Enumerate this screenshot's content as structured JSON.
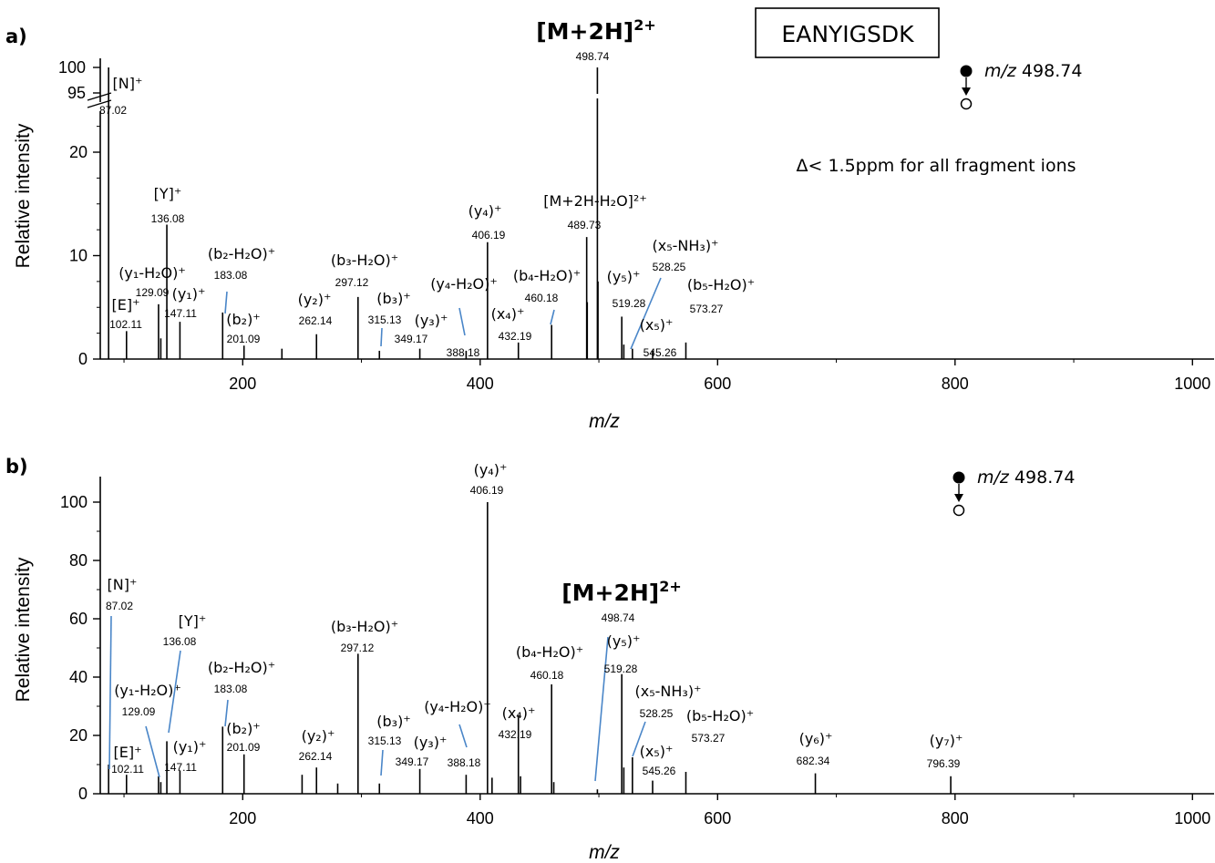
{
  "chart_data": [
    {
      "panel_label": "a)",
      "type": "bar",
      "xlabel": "m/z",
      "ylabel": "Relative intensity",
      "xlim": [
        80,
        1020
      ],
      "x_ticks": [
        200,
        400,
        600,
        800,
        1000
      ],
      "y_ticks_lower": [
        0,
        10,
        20
      ],
      "y_ticks_upper": [
        95,
        100
      ],
      "axis_break": {
        "below": 25,
        "above": 95
      },
      "sequence_box": "EANYIGSDK",
      "precursor": {
        "title": "[M+2H]",
        "charge": "2+",
        "mz": "498.74"
      },
      "fragmentation_scheme": "m/z 498.74",
      "note": "Δ< 1.5ppm for all fragment ions",
      "peaks": [
        {
          "x": 87.02,
          "y": 100
        },
        {
          "x": 102.11,
          "y": 2.7
        },
        {
          "x": 129.09,
          "y": 5.3
        },
        {
          "x": 131.0,
          "y": 2.0
        },
        {
          "x": 136.08,
          "y": 13.0
        },
        {
          "x": 147.11,
          "y": 3.6
        },
        {
          "x": 183.08,
          "y": 4.5
        },
        {
          "x": 201.09,
          "y": 1.3
        },
        {
          "x": 233.0,
          "y": 1.0
        },
        {
          "x": 262.14,
          "y": 2.4
        },
        {
          "x": 297.12,
          "y": 6.0
        },
        {
          "x": 315.13,
          "y": 0.8
        },
        {
          "x": 349.17,
          "y": 1.0
        },
        {
          "x": 388.18,
          "y": 0.8
        },
        {
          "x": 406.19,
          "y": 11.3
        },
        {
          "x": 432.19,
          "y": 1.6
        },
        {
          "x": 460.18,
          "y": 3.3
        },
        {
          "x": 489.73,
          "y": 11.8
        },
        {
          "x": 490.2,
          "y": 5.5
        },
        {
          "x": 498.74,
          "y": 100
        },
        {
          "x": 499.24,
          "y": 7.5
        },
        {
          "x": 519.28,
          "y": 4.1
        },
        {
          "x": 521.0,
          "y": 1.4
        },
        {
          "x": 528.25,
          "y": 1.0
        },
        {
          "x": 545.26,
          "y": 0.8
        },
        {
          "x": 573.27,
          "y": 1.6
        }
      ],
      "annotations": [
        {
          "ion": "[N]⁺",
          "mz": "87.02"
        },
        {
          "ion": "[E]⁺",
          "mz": "102.11"
        },
        {
          "ion": "(y₁-H₂O)⁺",
          "mz": "129.09"
        },
        {
          "ion": "[Y]⁺",
          "mz": "136.08"
        },
        {
          "ion": "(y₁)⁺",
          "mz": "147.11"
        },
        {
          "ion": "(b₂-H₂O)⁺",
          "mz": "183.08"
        },
        {
          "ion": "(b₂)⁺",
          "mz": "201.09"
        },
        {
          "ion": "(y₂)⁺",
          "mz": "262.14"
        },
        {
          "ion": "(b₃-H₂O)⁺",
          "mz": "297.12"
        },
        {
          "ion": "(b₃)⁺",
          "mz": "315.13"
        },
        {
          "ion": "(y₃)⁺",
          "mz": "349.17"
        },
        {
          "ion": "(y₄-H₂O)⁺",
          "mz": "388.18"
        },
        {
          "ion": "(y₄)⁺",
          "mz": "406.19"
        },
        {
          "ion": "(x₄)⁺",
          "mz": "432.19"
        },
        {
          "ion": "(b₄-H₂O)⁺",
          "mz": "460.18"
        },
        {
          "ion": "[M+2H-H₂O]²⁺",
          "mz": "489.73"
        },
        {
          "ion": "(y₅)⁺",
          "mz": "519.28"
        },
        {
          "ion": "(x₅-NH₃)⁺",
          "mz": "528.25"
        },
        {
          "ion": "(x₅)⁺",
          "mz": "545.26"
        },
        {
          "ion": "(b₅-H₂O)⁺",
          "mz": "573.27"
        }
      ]
    },
    {
      "panel_label": "b)",
      "type": "bar",
      "xlabel": "m/z",
      "ylabel": "Relative intensity",
      "xlim": [
        80,
        1020
      ],
      "ylim": [
        0,
        108
      ],
      "x_ticks": [
        200,
        400,
        600,
        800,
        1000
      ],
      "y_ticks": [
        0,
        20,
        40,
        60,
        80,
        100
      ],
      "precursor": {
        "title": "[M+2H]",
        "charge": "2+",
        "mz": "498.74"
      },
      "fragmentation_scheme": "m/z 498.74",
      "peaks": [
        {
          "x": 87.02,
          "y": 10
        },
        {
          "x": 102.11,
          "y": 6.5
        },
        {
          "x": 129.09,
          "y": 6
        },
        {
          "x": 131.0,
          "y": 4
        },
        {
          "x": 136.08,
          "y": 18
        },
        {
          "x": 147.11,
          "y": 8
        },
        {
          "x": 183.08,
          "y": 23
        },
        {
          "x": 201.09,
          "y": 13.5
        },
        {
          "x": 250.0,
          "y": 6.5
        },
        {
          "x": 262.14,
          "y": 9
        },
        {
          "x": 280.0,
          "y": 3.5
        },
        {
          "x": 297.12,
          "y": 48
        },
        {
          "x": 315.13,
          "y": 3.5
        },
        {
          "x": 349.17,
          "y": 8.5
        },
        {
          "x": 388.18,
          "y": 6.5
        },
        {
          "x": 406.19,
          "y": 100
        },
        {
          "x": 410.0,
          "y": 5.5
        },
        {
          "x": 432.19,
          "y": 27
        },
        {
          "x": 434.0,
          "y": 6
        },
        {
          "x": 460.18,
          "y": 37.5
        },
        {
          "x": 462.0,
          "y": 4
        },
        {
          "x": 498.74,
          "y": 1.5
        },
        {
          "x": 519.28,
          "y": 41
        },
        {
          "x": 521.0,
          "y": 9
        },
        {
          "x": 528.25,
          "y": 12.5
        },
        {
          "x": 545.26,
          "y": 4.5
        },
        {
          "x": 573.27,
          "y": 7.5
        },
        {
          "x": 682.34,
          "y": 7
        },
        {
          "x": 796.39,
          "y": 6
        }
      ],
      "annotations": [
        {
          "ion": "[N]⁺",
          "mz": "87.02"
        },
        {
          "ion": "[E]⁺",
          "mz": "102.11"
        },
        {
          "ion": "(y₁-H₂O)⁺",
          "mz": "129.09"
        },
        {
          "ion": "[Y]⁺",
          "mz": "136.08"
        },
        {
          "ion": "(y₁)⁺",
          "mz": "147.11"
        },
        {
          "ion": "(b₂-H₂O)⁺",
          "mz": "183.08"
        },
        {
          "ion": "(b₂)⁺",
          "mz": "201.09"
        },
        {
          "ion": "(y₂)⁺",
          "mz": "262.14"
        },
        {
          "ion": "(b₃-H₂O)⁺",
          "mz": "297.12"
        },
        {
          "ion": "(b₃)⁺",
          "mz": "315.13"
        },
        {
          "ion": "(y₃)⁺",
          "mz": "349.17"
        },
        {
          "ion": "(y₄-H₂O)⁺",
          "mz": "388.18"
        },
        {
          "ion": "(y₄)⁺",
          "mz": "406.19"
        },
        {
          "ion": "(x₄)⁺",
          "mz": "432.19"
        },
        {
          "ion": "(b₄-H₂O)⁺",
          "mz": "460.18"
        },
        {
          "ion": "(y₅)⁺",
          "mz": "519.28"
        },
        {
          "ion": "(x₅-NH₃)⁺",
          "mz": "528.25"
        },
        {
          "ion": "(x₅)⁺",
          "mz": "545.26"
        },
        {
          "ion": "(b₅-H₂O)⁺",
          "mz": "573.27"
        },
        {
          "ion": "(y₆)⁺",
          "mz": "682.34"
        },
        {
          "ion": "(y₇)⁺",
          "mz": "796.39"
        }
      ]
    }
  ]
}
